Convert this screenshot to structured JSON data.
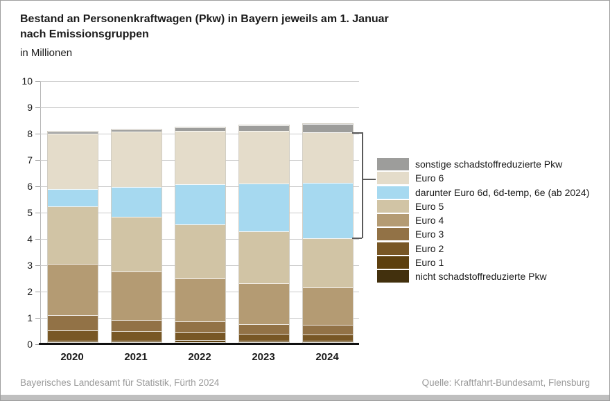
{
  "header": {
    "title_line1": "Bestand an Personenkraftwagen (Pkw) in Bayern jeweils am 1. Januar",
    "title_line2": "nach Emissionsgruppen",
    "subtitle": "in Millionen"
  },
  "chart_data": {
    "type": "bar",
    "stacked": true,
    "title": "Bestand an Personenkraftwagen (Pkw) in Bayern jeweils am 1. Januar nach Emissionsgruppen",
    "ylabel": "in Millionen",
    "xlabel": "",
    "categories": [
      "2020",
      "2021",
      "2022",
      "2023",
      "2024"
    ],
    "series": [
      {
        "name": "nicht schadstoffreduzierte Pkw",
        "color": "#42300d",
        "values": [
          0.07,
          0.07,
          0.07,
          0.07,
          0.07
        ]
      },
      {
        "name": "Euro 1",
        "color": "#5d400e",
        "values": [
          0.07,
          0.07,
          0.08,
          0.07,
          0.07
        ]
      },
      {
        "name": "Euro 2",
        "color": "#785725",
        "values": [
          0.39,
          0.35,
          0.29,
          0.26,
          0.24
        ]
      },
      {
        "name": "Euro 3",
        "color": "#927246",
        "values": [
          0.58,
          0.44,
          0.44,
          0.37,
          0.35
        ]
      },
      {
        "name": "Euro 4",
        "color": "#b49b73",
        "values": [
          1.94,
          1.83,
          1.62,
          1.54,
          1.42
        ]
      },
      {
        "name": "Euro 5",
        "color": "#d1c4a5",
        "values": [
          2.18,
          2.09,
          2.06,
          1.97,
          1.87
        ]
      },
      {
        "name": "darunter Euro 6d, 6d-temp, 6e (ab 2024)",
        "color": "#a6d9f0",
        "values": [
          0.67,
          1.13,
          1.52,
          1.83,
          2.12
        ]
      },
      {
        "name": "Euro 6",
        "color": "#e4dcca",
        "values": [
          2.11,
          2.1,
          2.02,
          1.99,
          1.91
        ]
      },
      {
        "name": "sonstige schadstoffreduzierte Pkw",
        "color": "#9d9d9b",
        "values": [
          0.07,
          0.08,
          0.13,
          0.22,
          0.31
        ]
      }
    ],
    "totals": [
      8.08,
      8.16,
      8.23,
      8.32,
      8.36
    ],
    "ylim": [
      0,
      10
    ],
    "ytick_step": 1,
    "grid": true,
    "legend_position": "right",
    "legend_order": "top-of-stack-first",
    "annotation": {
      "bracket_at_category": "2024",
      "bracket_value_from": 4.02,
      "bracket_value_to": 8.05,
      "bracket_points_to": "Euro 6"
    }
  },
  "footer": {
    "left": "Bayerisches Landesamt für Statistik, Fürth 2024",
    "right": "Quelle: Kraftfahrt-Bundesamt, Flensburg"
  }
}
